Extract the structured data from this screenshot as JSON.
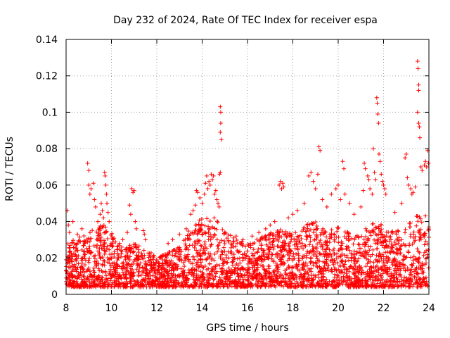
{
  "chart_data": {
    "type": "scatter",
    "title": "Day 232 of 2024, Rate Of TEC Index for receiver espa",
    "xlabel": "GPS time / hours",
    "ylabel": "ROTI / TECUs",
    "xlim": [
      8,
      24
    ],
    "ylim": [
      0,
      0.14
    ],
    "x_ticks": [
      8,
      10,
      12,
      14,
      16,
      18,
      20,
      22,
      24
    ],
    "x_tick_labels": [
      "8",
      "10",
      "12",
      "14",
      "16",
      "18",
      "20",
      "22",
      "24"
    ],
    "y_ticks": [
      0,
      0.02,
      0.04,
      0.06,
      0.08,
      0.1,
      0.12,
      0.14
    ],
    "y_tick_labels": [
      "0",
      "0.02",
      "0.04",
      "0.06",
      "0.08",
      "0.1",
      "0.12",
      "0.14"
    ],
    "grid": true,
    "marker": "+",
    "marker_color": "#ff0000",
    "series": [
      {
        "name": "ROTI",
        "points": [
          [
            8.05,
            0.046
          ],
          [
            8.1,
            0.038
          ],
          [
            8.15,
            0.034
          ],
          [
            8.3,
            0.04
          ],
          [
            8.5,
            0.033
          ],
          [
            8.7,
            0.036
          ],
          [
            8.95,
            0.072
          ],
          [
            9.0,
            0.068
          ],
          [
            9.0,
            0.06
          ],
          [
            9.05,
            0.055
          ],
          [
            9.1,
            0.058
          ],
          [
            9.2,
            0.061
          ],
          [
            9.25,
            0.052
          ],
          [
            9.3,
            0.048
          ],
          [
            9.4,
            0.04
          ],
          [
            9.5,
            0.044
          ],
          [
            9.55,
            0.05
          ],
          [
            9.6,
            0.046
          ],
          [
            9.65,
            0.042
          ],
          [
            9.7,
            0.067
          ],
          [
            9.72,
            0.065
          ],
          [
            9.75,
            0.06
          ],
          [
            9.78,
            0.055
          ],
          [
            9.8,
            0.05
          ],
          [
            9.85,
            0.045
          ],
          [
            9.9,
            0.04
          ],
          [
            10.5,
            0.03
          ],
          [
            10.7,
            0.034
          ],
          [
            10.8,
            0.049
          ],
          [
            10.85,
            0.044
          ],
          [
            10.9,
            0.058
          ],
          [
            10.95,
            0.056
          ],
          [
            11.0,
            0.057
          ],
          [
            11.05,
            0.04
          ],
          [
            11.1,
            0.036
          ],
          [
            11.4,
            0.035
          ],
          [
            11.45,
            0.033
          ],
          [
            11.5,
            0.03
          ],
          [
            12.5,
            0.028
          ],
          [
            12.7,
            0.03
          ],
          [
            13.0,
            0.033
          ],
          [
            13.3,
            0.036
          ],
          [
            13.5,
            0.044
          ],
          [
            13.6,
            0.046
          ],
          [
            13.7,
            0.049
          ],
          [
            13.75,
            0.057
          ],
          [
            13.8,
            0.056
          ],
          [
            13.9,
            0.053
          ],
          [
            14.0,
            0.05
          ],
          [
            14.1,
            0.055
          ],
          [
            14.15,
            0.061
          ],
          [
            14.2,
            0.065
          ],
          [
            14.25,
            0.058
          ],
          [
            14.3,
            0.062
          ],
          [
            14.35,
            0.06
          ],
          [
            14.4,
            0.066
          ],
          [
            14.45,
            0.063
          ],
          [
            14.5,
            0.065
          ],
          [
            14.55,
            0.055
          ],
          [
            14.6,
            0.057
          ],
          [
            14.65,
            0.052
          ],
          [
            14.7,
            0.05
          ],
          [
            14.75,
            0.048
          ],
          [
            14.77,
            0.066
          ],
          [
            14.8,
            0.067
          ],
          [
            14.8,
            0.103
          ],
          [
            14.82,
            0.1
          ],
          [
            14.82,
            0.094
          ],
          [
            14.8,
            0.089
          ],
          [
            14.85,
            0.085
          ],
          [
            15.0,
            0.034
          ],
          [
            15.5,
            0.032
          ],
          [
            15.8,
            0.03
          ],
          [
            16.2,
            0.032
          ],
          [
            16.5,
            0.034
          ],
          [
            16.8,
            0.036
          ],
          [
            17.0,
            0.038
          ],
          [
            17.2,
            0.04
          ],
          [
            17.4,
            0.06
          ],
          [
            17.45,
            0.062
          ],
          [
            17.5,
            0.058
          ],
          [
            17.55,
            0.061
          ],
          [
            17.6,
            0.059
          ],
          [
            17.8,
            0.042
          ],
          [
            18.0,
            0.044
          ],
          [
            18.2,
            0.046
          ],
          [
            18.5,
            0.05
          ],
          [
            18.7,
            0.065
          ],
          [
            18.8,
            0.067
          ],
          [
            18.9,
            0.062
          ],
          [
            19.0,
            0.058
          ],
          [
            19.1,
            0.066
          ],
          [
            19.15,
            0.081
          ],
          [
            19.2,
            0.079
          ],
          [
            19.3,
            0.052
          ],
          [
            19.5,
            0.048
          ],
          [
            19.7,
            0.055
          ],
          [
            19.9,
            0.058
          ],
          [
            20.0,
            0.06
          ],
          [
            20.1,
            0.052
          ],
          [
            20.2,
            0.073
          ],
          [
            20.25,
            0.069
          ],
          [
            20.3,
            0.055
          ],
          [
            20.5,
            0.05
          ],
          [
            20.7,
            0.044
          ],
          [
            21.0,
            0.048
          ],
          [
            21.1,
            0.057
          ],
          [
            21.15,
            0.072
          ],
          [
            21.2,
            0.069
          ],
          [
            21.3,
            0.065
          ],
          [
            21.35,
            0.063
          ],
          [
            21.4,
            0.058
          ],
          [
            21.5,
            0.055
          ],
          [
            21.55,
            0.08
          ],
          [
            21.6,
            0.067
          ],
          [
            21.65,
            0.063
          ],
          [
            21.7,
            0.108
          ],
          [
            21.72,
            0.105
          ],
          [
            21.75,
            0.099
          ],
          [
            21.78,
            0.094
          ],
          [
            21.8,
            0.077
          ],
          [
            21.85,
            0.073
          ],
          [
            21.9,
            0.066
          ],
          [
            21.95,
            0.062
          ],
          [
            22.0,
            0.06
          ],
          [
            22.05,
            0.058
          ],
          [
            22.1,
            0.055
          ],
          [
            22.5,
            0.045
          ],
          [
            22.8,
            0.05
          ],
          [
            22.95,
            0.075
          ],
          [
            23.0,
            0.077
          ],
          [
            23.05,
            0.064
          ],
          [
            23.1,
            0.06
          ],
          [
            23.2,
            0.058
          ],
          [
            23.25,
            0.055
          ],
          [
            23.3,
            0.056
          ],
          [
            23.4,
            0.059
          ],
          [
            23.5,
            0.128
          ],
          [
            23.52,
            0.124
          ],
          [
            23.55,
            0.115
          ],
          [
            23.55,
            0.112
          ],
          [
            23.5,
            0.1
          ],
          [
            23.55,
            0.094
          ],
          [
            23.58,
            0.092
          ],
          [
            23.6,
            0.086
          ],
          [
            23.65,
            0.07
          ],
          [
            23.7,
            0.068
          ],
          [
            23.8,
            0.071
          ],
          [
            23.85,
            0.073
          ],
          [
            23.9,
            0.07
          ],
          [
            23.95,
            0.079
          ],
          [
            23.98,
            0.072
          ]
        ]
      }
    ]
  }
}
